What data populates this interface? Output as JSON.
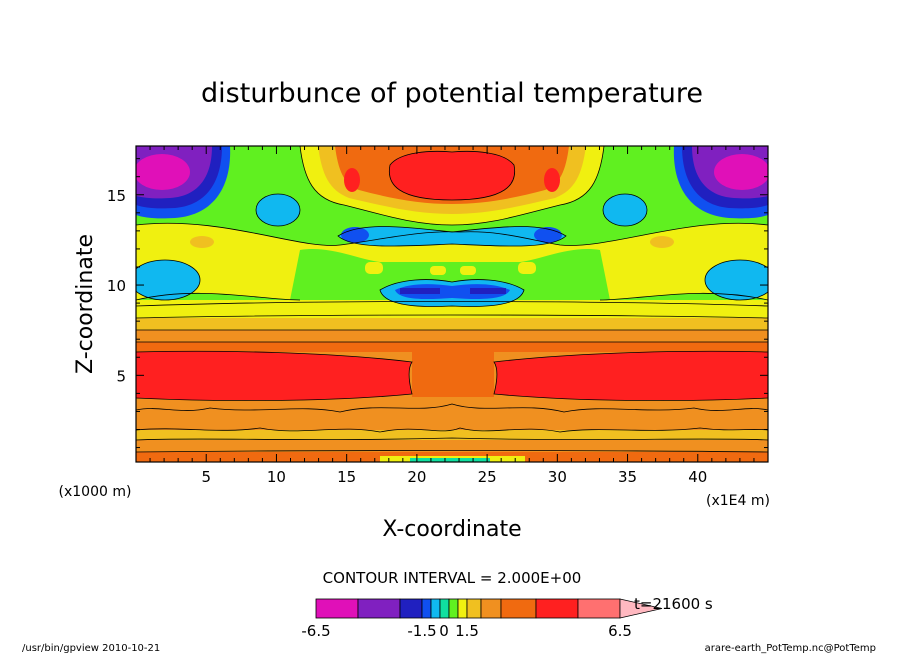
{
  "chart_data": {
    "type": "heatmap",
    "title": "disturbunce of potential temperature",
    "xlabel": "X-coordinate",
    "ylabel": "Z-coordinate",
    "x_unit": "(x1E4 m)",
    "y_unit": "(x1000 m)",
    "xlim": [
      0,
      45
    ],
    "ylim": [
      0.2,
      17.7
    ],
    "x_ticks": [
      5,
      10,
      15,
      20,
      25,
      30,
      35,
      40
    ],
    "y_ticks": [
      5,
      10,
      15
    ],
    "contour_interval_text": "CONTOUR INTERVAL = 2.000E+00",
    "time_text": "t=21600 s",
    "colorbar": {
      "colors": [
        "#e010b8",
        "#8020c0",
        "#2020c0",
        "#1050f0",
        "#10b8f0",
        "#10e0a0",
        "#60f020",
        "#f0f010",
        "#f0c020",
        "#f09020",
        "#f06a10",
        "#ff2020",
        "#ff7070",
        "#ffb8c0"
      ],
      "tick_labels": [
        {
          "label": "-6.5",
          "value": -6.5
        },
        {
          "label": "-1.5",
          "value": -1.5
        },
        {
          "label": "0",
          "value": 0
        },
        {
          "label": "1.5",
          "value": 1.5
        },
        {
          "label": "6.5",
          "value": 6.5
        }
      ]
    }
  },
  "footer": {
    "left": "/usr/bin/gpview   2010-10-21",
    "right": "arare-earth_PotTemp.nc@PotTemp"
  }
}
